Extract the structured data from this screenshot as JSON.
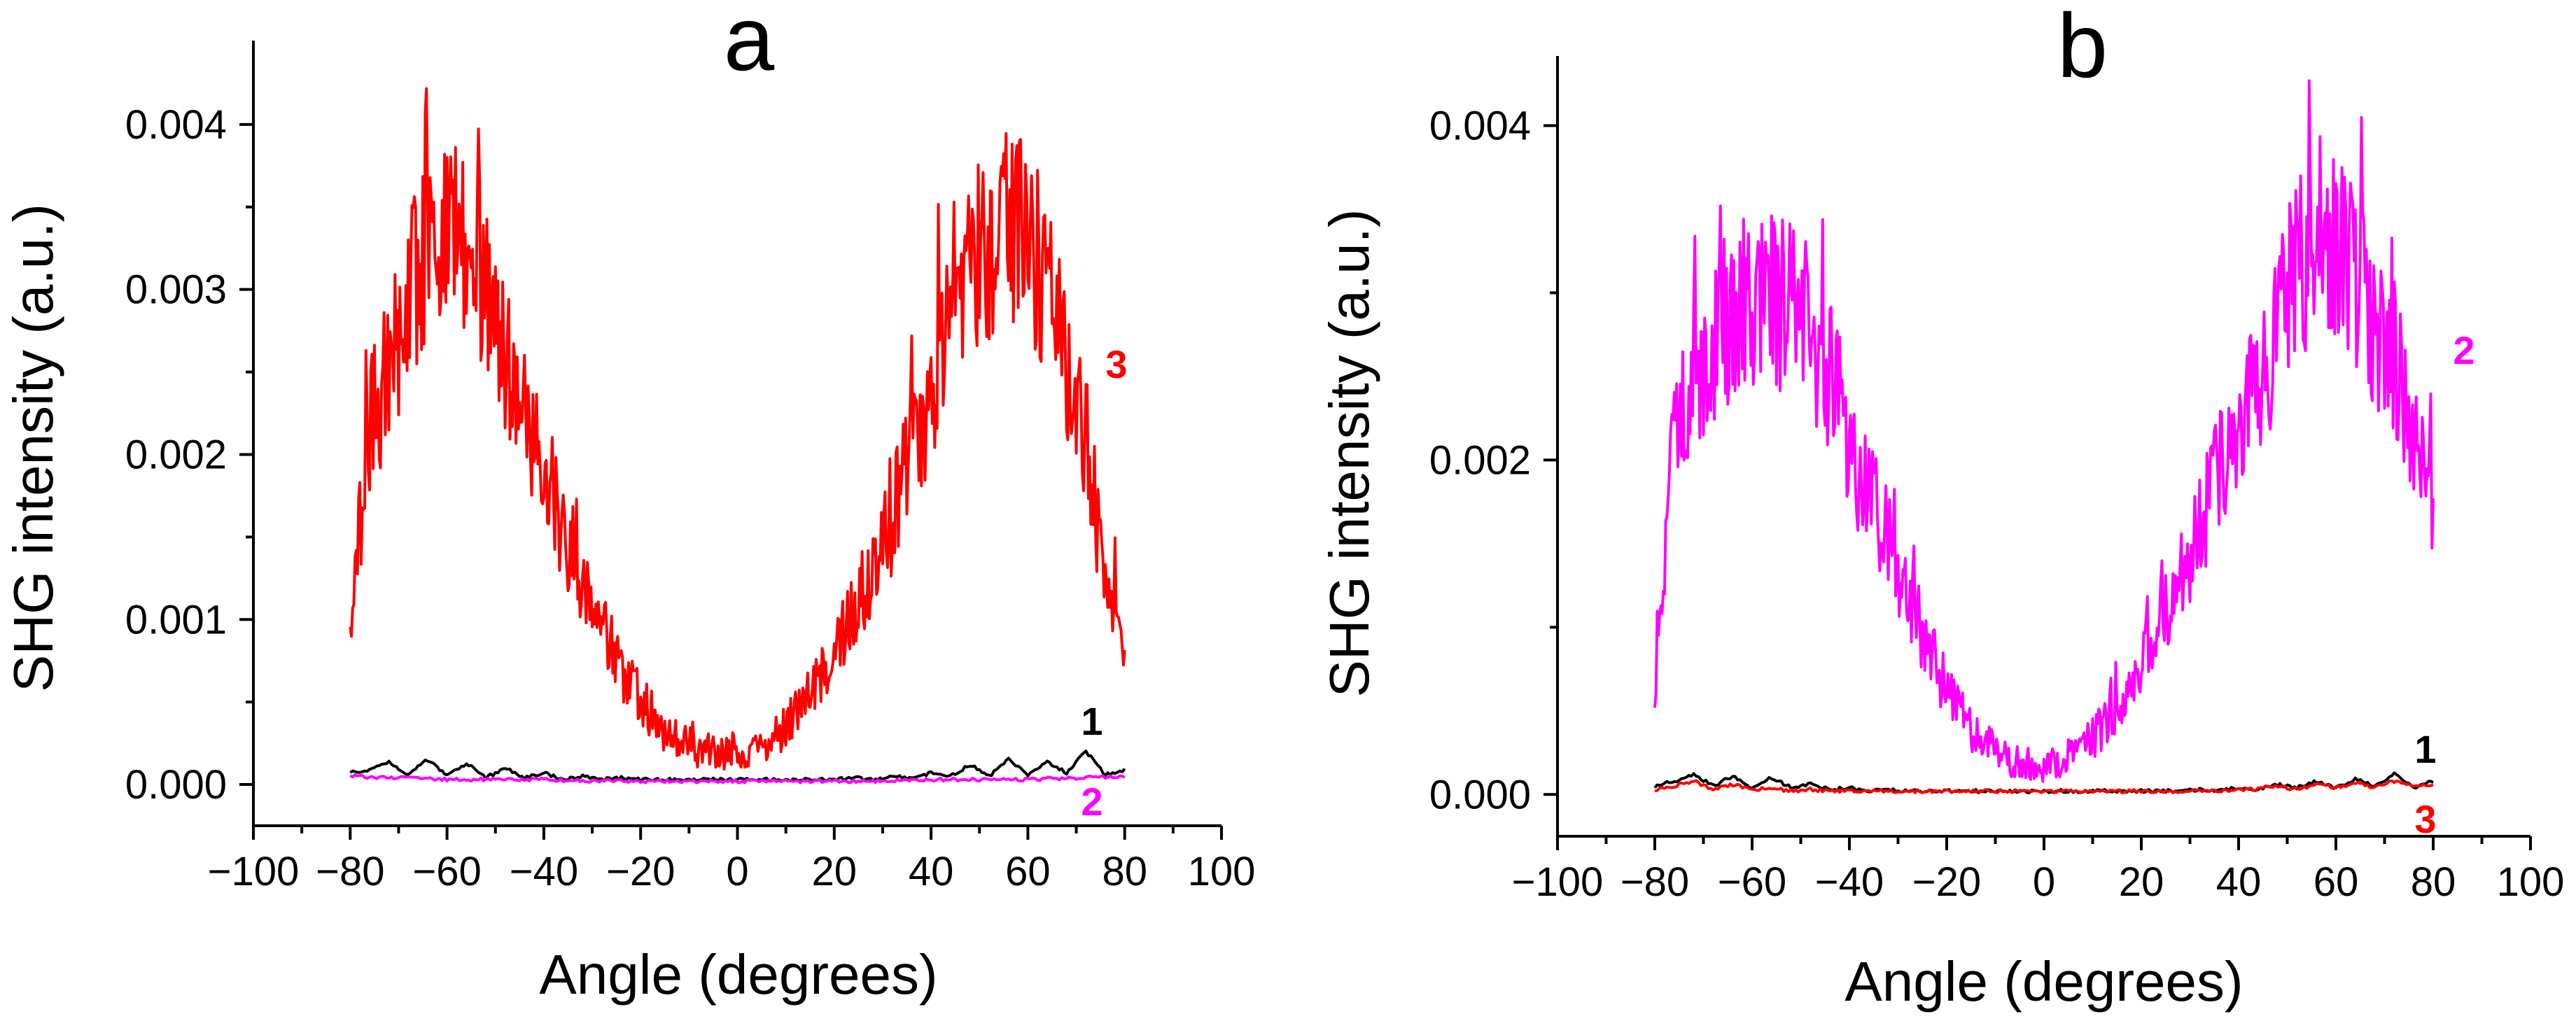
{
  "chart_data": [
    {
      "type": "line",
      "panel_label": "a",
      "xlabel": "Angle (degrees)",
      "ylabel": "SHG intensity (a.u.)",
      "xlim": [
        -100,
        100
      ],
      "ylim": [
        -0.00025,
        0.0045
      ],
      "xticks": [
        -100,
        -80,
        -60,
        -40,
        -20,
        0,
        20,
        40,
        60,
        80,
        100
      ],
      "xtick_labels": [
        "−100",
        "−80",
        "−60",
        "−40",
        "−20",
        "0",
        "20",
        "40",
        "60",
        "80",
        "100"
      ],
      "yticks": [
        0.0,
        0.001,
        0.002,
        0.003,
        0.004
      ],
      "ytick_labels": [
        "0.000",
        "0.001",
        "0.002",
        "0.003",
        "0.004"
      ],
      "series": [
        {
          "label": "3",
          "color": "#ff0000",
          "x": [
            -80,
            -76,
            -72,
            -68,
            -64,
            -60,
            -56,
            -52,
            -48,
            -44,
            -40,
            -36,
            -32,
            -28,
            -24,
            -20,
            -16,
            -12,
            -8,
            -4,
            0,
            4,
            8,
            12,
            16,
            20,
            24,
            28,
            32,
            36,
            40,
            44,
            48,
            52,
            56,
            60,
            64,
            68,
            72,
            76,
            80
          ],
          "y": [
            0.0009,
            0.0022,
            0.0025,
            0.0029,
            0.0033,
            0.0034,
            0.0033,
            0.003,
            0.0026,
            0.0023,
            0.0019,
            0.0015,
            0.0012,
            0.00095,
            0.0007,
            0.00052,
            0.00035,
            0.00027,
            0.00021,
            0.00019,
            0.0002,
            0.00022,
            0.00029,
            0.00042,
            0.0006,
            0.0008,
            0.00105,
            0.0013,
            0.0016,
            0.002,
            0.0024,
            0.0028,
            0.0031,
            0.0033,
            0.0034,
            0.0033,
            0.003,
            0.0026,
            0.0021,
            0.0012,
            0.00065
          ]
        },
        {
          "label": "1",
          "color": "#000000",
          "x": [
            -80,
            -76,
            -72,
            -68,
            -64,
            -60,
            -56,
            -52,
            -48,
            -44,
            -40,
            -36,
            -32,
            -28,
            -24,
            -20,
            -16,
            -12,
            -8,
            -4,
            0,
            4,
            8,
            12,
            16,
            20,
            24,
            28,
            32,
            36,
            40,
            44,
            48,
            52,
            56,
            60,
            64,
            68,
            72,
            76,
            80
          ],
          "y": [
            7e-05,
            9e-05,
            0.00014,
            6e-05,
            0.00015,
            5e-05,
            0.00013,
            4e-05,
            0.0001,
            4e-05,
            7e-05,
            3e-05,
            5e-05,
            3e-05,
            4e-05,
            3e-05,
            3e-05,
            3e-05,
            3e-05,
            3e-05,
            3e-05,
            3e-05,
            3e-05,
            3e-05,
            3e-05,
            3e-05,
            4e-05,
            3e-05,
            5e-05,
            4e-05,
            7e-05,
            5e-05,
            0.00012,
            5e-05,
            0.00015,
            6e-05,
            0.00014,
            7e-05,
            0.0002,
            6e-05,
            9e-05
          ]
        },
        {
          "label": "2",
          "color": "#ff00ff",
          "x": [
            -80,
            -70,
            -60,
            -50,
            -40,
            -30,
            -20,
            -10,
            0,
            10,
            20,
            30,
            40,
            50,
            60,
            70,
            80
          ],
          "y": [
            5e-05,
            4e-05,
            3e-05,
            3e-05,
            3e-05,
            2e-05,
            2e-05,
            2e-05,
            2e-05,
            2e-05,
            2e-05,
            2e-05,
            3e-05,
            3e-05,
            3e-05,
            4e-05,
            5e-05
          ]
        }
      ]
    },
    {
      "type": "line",
      "panel_label": "b",
      "xlabel": "Angle (degrees)",
      "ylabel": "SHG intensity (a.u.)",
      "xlim": [
        -100,
        100
      ],
      "ylim": [
        -0.00025,
        0.0045
      ],
      "xticks": [
        -100,
        -80,
        -60,
        -40,
        -20,
        0,
        20,
        40,
        60,
        80,
        100
      ],
      "xtick_labels": [
        "−100",
        "−80",
        "−60",
        "−40",
        "−20",
        "0",
        "20",
        "40",
        "60",
        "80",
        "100"
      ],
      "yticks": [
        0.0,
        0.002,
        0.004
      ],
      "ytick_labels": [
        "0.000",
        "0.002",
        "0.004"
      ],
      "series": [
        {
          "label": "2",
          "color": "#ff00ff",
          "x": [
            -80,
            -76,
            -72,
            -68,
            -64,
            -60,
            -56,
            -52,
            -48,
            -44,
            -40,
            -36,
            -32,
            -28,
            -24,
            -20,
            -16,
            -12,
            -8,
            -4,
            0,
            4,
            8,
            12,
            16,
            20,
            24,
            28,
            32,
            36,
            40,
            44,
            48,
            52,
            56,
            60,
            64,
            68,
            72,
            76,
            80
          ],
          "y": [
            0.0007,
            0.0022,
            0.0025,
            0.0027,
            0.0029,
            0.003,
            0.003,
            0.0029,
            0.0028,
            0.0025,
            0.0021,
            0.0018,
            0.0015,
            0.0012,
            0.0009,
            0.00062,
            0.00043,
            0.0003,
            0.00022,
            0.00018,
            0.00018,
            0.0002,
            0.00028,
            0.0004,
            0.00058,
            0.0008,
            0.00105,
            0.0013,
            0.0016,
            0.0019,
            0.0022,
            0.0025,
            0.0028,
            0.0031,
            0.0033,
            0.0033,
            0.0031,
            0.0028,
            0.0026,
            0.0022,
            0.0018
          ]
        },
        {
          "label": "1",
          "color": "#000000",
          "x": [
            -80,
            -76,
            -72,
            -68,
            -64,
            -60,
            -56,
            -52,
            -48,
            -44,
            -40,
            -36,
            -32,
            -28,
            -24,
            -20,
            -16,
            -12,
            -8,
            -4,
            0,
            4,
            8,
            12,
            16,
            20,
            24,
            28,
            32,
            36,
            40,
            44,
            48,
            52,
            56,
            60,
            64,
            68,
            72,
            76,
            80
          ],
          "y": [
            5e-05,
            8e-05,
            0.00012,
            5e-05,
            0.00011,
            4e-05,
            0.0001,
            4e-05,
            6e-05,
            3e-05,
            4e-05,
            2e-05,
            3e-05,
            2e-05,
            2e-05,
            2e-05,
            2e-05,
            2e-05,
            2e-05,
            2e-05,
            2e-05,
            2e-05,
            2e-05,
            2e-05,
            2e-05,
            2e-05,
            2e-05,
            2e-05,
            3e-05,
            2e-05,
            4e-05,
            3e-05,
            6e-05,
            4e-05,
            8e-05,
            4e-05,
            9e-05,
            5e-05,
            0.00012,
            4e-05,
            8e-05
          ]
        },
        {
          "label": "3",
          "color": "#ff0000",
          "x": [
            -80,
            -76,
            -72,
            -68,
            -64,
            -60,
            -56,
            -52,
            -48,
            -44,
            -40,
            -36,
            -32,
            -28,
            -24,
            -20,
            -16,
            -12,
            -8,
            -4,
            0,
            4,
            8,
            12,
            16,
            20,
            24,
            28,
            32,
            36,
            40,
            44,
            48,
            52,
            56,
            60,
            64,
            68,
            72,
            76,
            80
          ],
          "y": [
            3e-05,
            5e-05,
            8e-05,
            3e-05,
            6e-05,
            3e-05,
            4e-05,
            2e-05,
            3e-05,
            2e-05,
            2e-05,
            2e-05,
            2e-05,
            2e-05,
            2e-05,
            2e-05,
            2e-05,
            2e-05,
            2e-05,
            2e-05,
            2e-05,
            2e-05,
            2e-05,
            2e-05,
            2e-05,
            2e-05,
            2e-05,
            2e-05,
            2e-05,
            2e-05,
            3e-05,
            3e-05,
            5e-05,
            3e-05,
            6e-05,
            4e-05,
            7e-05,
            4e-05,
            8e-05,
            5e-05,
            6e-05
          ]
        }
      ]
    }
  ]
}
